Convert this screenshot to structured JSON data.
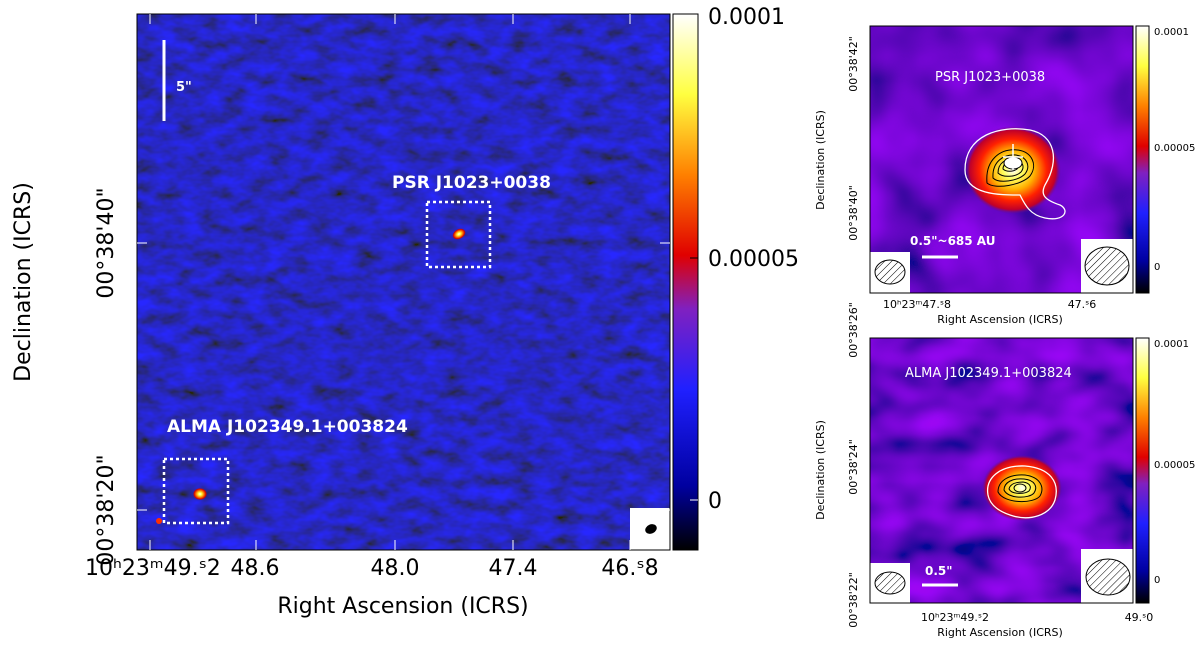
{
  "main_panel": {
    "y_axis_label": "Declination (ICRS)",
    "x_axis_label": "Right Ascension (ICRS)",
    "y_ticks": [
      {
        "label": "00°38'40\""
      },
      {
        "label": "00°38'20\""
      }
    ],
    "x_ticks": [
      {
        "label": "10ʰ23ᵐ49.ˢ2"
      },
      {
        "label": "48.6"
      },
      {
        "label": "48.0"
      },
      {
        "label": "47.4"
      },
      {
        "label": "46.ˢ8"
      }
    ],
    "scalebar_label": "5\"",
    "source_labels": {
      "psr": "PSR J1023+0038",
      "alma": "ALMA J102349.1+003824"
    },
    "colorbar_ticks": [
      {
        "label": "0.0001",
        "value": 0.0001
      },
      {
        "label": "0.00005",
        "value": 5e-05
      },
      {
        "label": "0",
        "value": 0
      }
    ]
  },
  "inset_top": {
    "title": "PSR J1023+0038",
    "y_axis_label": "Declination (ICRS)",
    "x_axis_label": "Right Ascension (ICRS)",
    "y_ticks": [
      {
        "label": "00°38'42\""
      },
      {
        "label": "00°38'40\""
      }
    ],
    "x_ticks": [
      {
        "label": "10ʰ23ᵐ47.ˢ8"
      },
      {
        "label": "47.ˢ6"
      }
    ],
    "scalebar_label": "0.5\"~685 AU",
    "colorbar_ticks": [
      {
        "label": "0.0001"
      },
      {
        "label": "0.00005"
      },
      {
        "label": "0"
      }
    ]
  },
  "inset_bottom": {
    "title": "ALMA J102349.1+003824",
    "y_axis_label": "Declination (ICRS)",
    "x_axis_label": "Right Ascension (ICRS)",
    "y_ticks": [
      {
        "label": "00°38'26\""
      },
      {
        "label": "00°38'24\""
      },
      {
        "label": "00°38'22\""
      }
    ],
    "x_ticks": [
      {
        "label": "10ʰ23ᵐ49.ˢ2"
      },
      {
        "label": "49.ˢ0"
      }
    ],
    "scalebar_label": "0.5\"",
    "colorbar_ticks": [
      {
        "label": "0.0001"
      },
      {
        "label": "0.00005"
      },
      {
        "label": "0"
      }
    ]
  },
  "colors": {
    "background_noise": "#1a1fb0",
    "axis": "#000000",
    "label_text": "#ffffff"
  }
}
